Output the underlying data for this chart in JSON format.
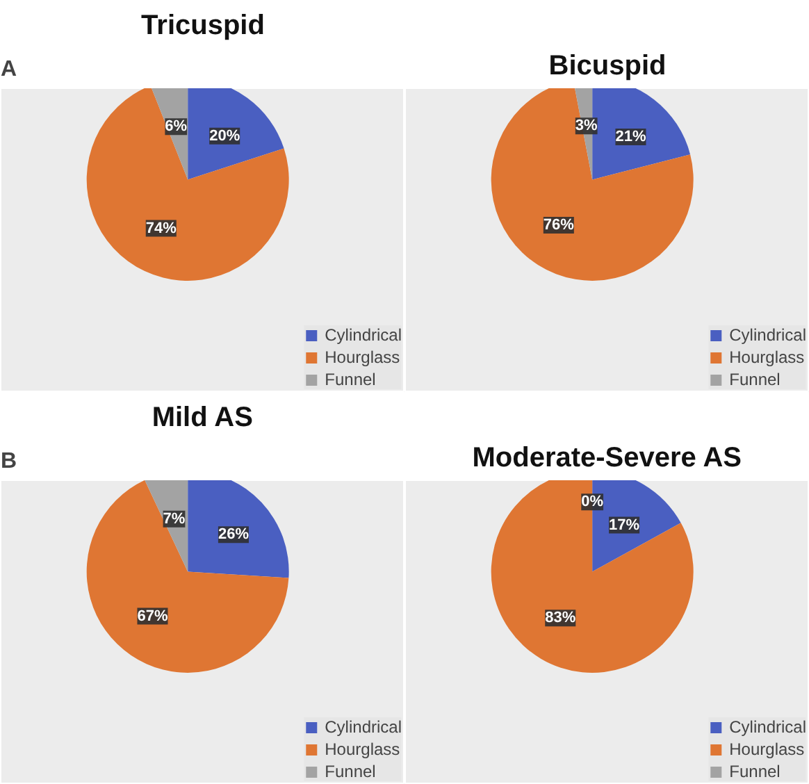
{
  "chart_data": [
    {
      "type": "pie",
      "title": "Tricuspid",
      "annotations": [
        "A"
      ],
      "categories": [
        "Cylindrical",
        "Hourglass",
        "Funnel"
      ],
      "values": [
        20,
        74,
        6
      ],
      "value_labels": [
        "20%",
        "74%",
        "6%"
      ],
      "colors": [
        "#4a5fc1",
        "#df7633",
        "#a3a3a3"
      ],
      "legend": "bottom right"
    },
    {
      "type": "pie",
      "title": "Bicuspid",
      "categories": [
        "Cylindrical",
        "Hourglass",
        "Funnel"
      ],
      "values": [
        21,
        76,
        3
      ],
      "value_labels": [
        "21%",
        "76%",
        "3%"
      ],
      "colors": [
        "#4a5fc1",
        "#df7633",
        "#a3a3a3"
      ],
      "legend": "bottom right"
    },
    {
      "type": "pie",
      "title": "Mild AS",
      "annotations": [
        "B"
      ],
      "categories": [
        "Cylindrical",
        "Hourglass",
        "Funnel"
      ],
      "values": [
        26,
        67,
        7
      ],
      "value_labels": [
        "26%",
        "67%",
        "7%"
      ],
      "colors": [
        "#4a5fc1",
        "#df7633",
        "#a3a3a3"
      ],
      "legend": "bottom right"
    },
    {
      "type": "pie",
      "title": "Moderate-Severe AS",
      "categories": [
        "Cylindrical",
        "Hourglass",
        "Funnel"
      ],
      "values": [
        17,
        83,
        0
      ],
      "value_labels": [
        "17%",
        "83%",
        "0%"
      ],
      "colors": [
        "#4a5fc1",
        "#df7633",
        "#a3a3a3"
      ],
      "legend": "bottom right"
    }
  ]
}
